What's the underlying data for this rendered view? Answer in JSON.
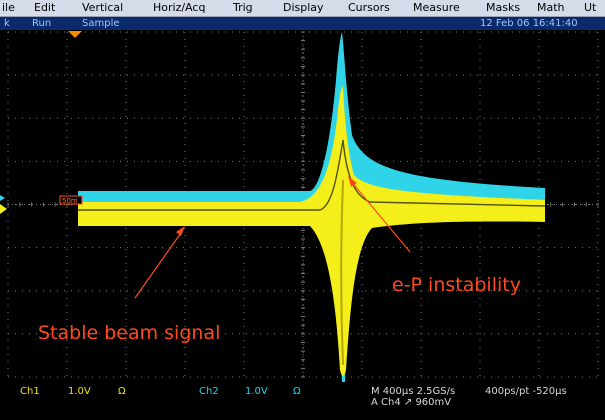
{
  "menu": {
    "items": [
      "ile",
      "Edit",
      "Vertical",
      "Horiz/Acq",
      "Trig",
      "Display",
      "Cursors",
      "Measure",
      "Masks",
      "Math",
      "Ut"
    ]
  },
  "status": {
    "left": "k",
    "state": "Run",
    "mode": "Sample",
    "datetime": "12 Feb 06 16:41:40"
  },
  "screen": {
    "trace_colors": {
      "ch1": "#f4ee1a",
      "ch2": "#2fd4e8",
      "annotation": "#ff4a1e",
      "grid": "#7a7a7a"
    },
    "ref_marker": "50m"
  },
  "annotations": {
    "instability_label": "e-P instability",
    "stable_label": "Stable beam signal"
  },
  "readout": {
    "ch1": {
      "name": "Ch1",
      "scale": "1.0V",
      "coupling": "Ω"
    },
    "ch2": {
      "name": "Ch2",
      "scale": "1.0V",
      "coupling": "Ω"
    },
    "timebase": "M 400µs 2.5GS/s",
    "trigger": "A  Ch4  ↗  960mV",
    "record": "400ps/pt -520µs"
  }
}
